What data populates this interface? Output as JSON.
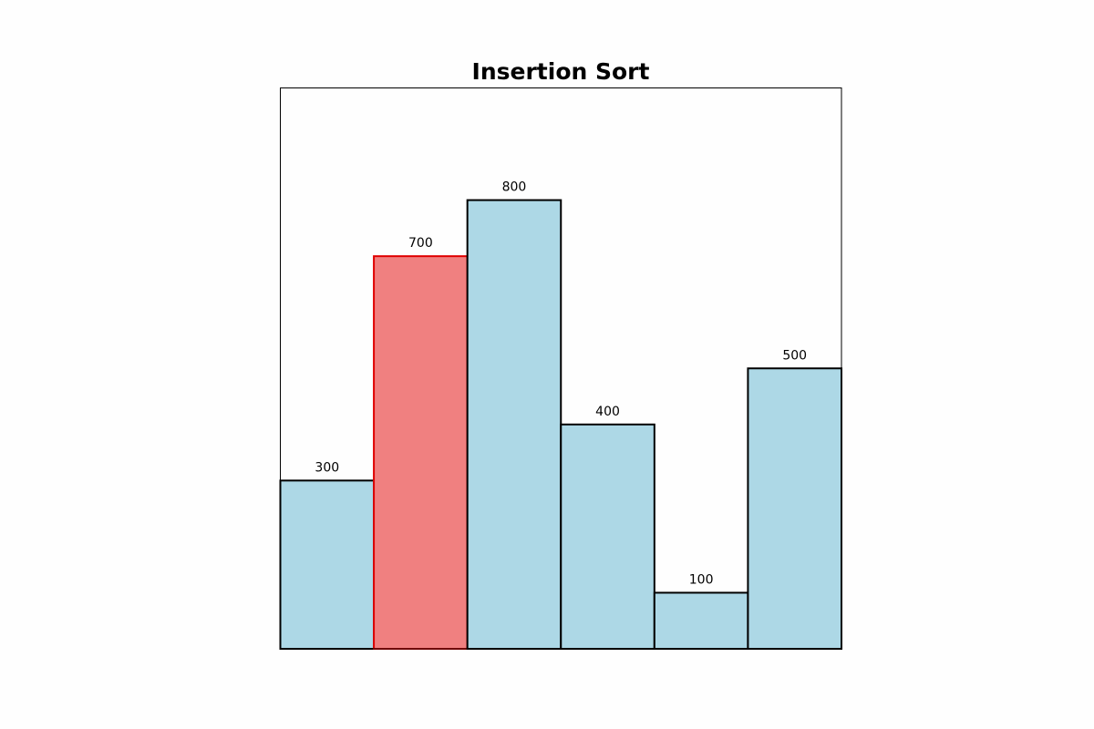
{
  "chart_data": {
    "type": "bar",
    "title": "Insertion Sort",
    "categories": [
      null,
      null,
      null,
      null,
      null,
      null
    ],
    "values": [
      300,
      700,
      800,
      400,
      100,
      500
    ],
    "colors": [
      "#add8e6",
      "#f08080",
      "#add8e6",
      "#add8e6",
      "#add8e6",
      "#add8e6"
    ],
    "edgecolors": [
      "#000000",
      "#e00000",
      "#000000",
      "#000000",
      "#000000",
      "#000000"
    ],
    "ylim": [
      0,
      1000
    ]
  }
}
